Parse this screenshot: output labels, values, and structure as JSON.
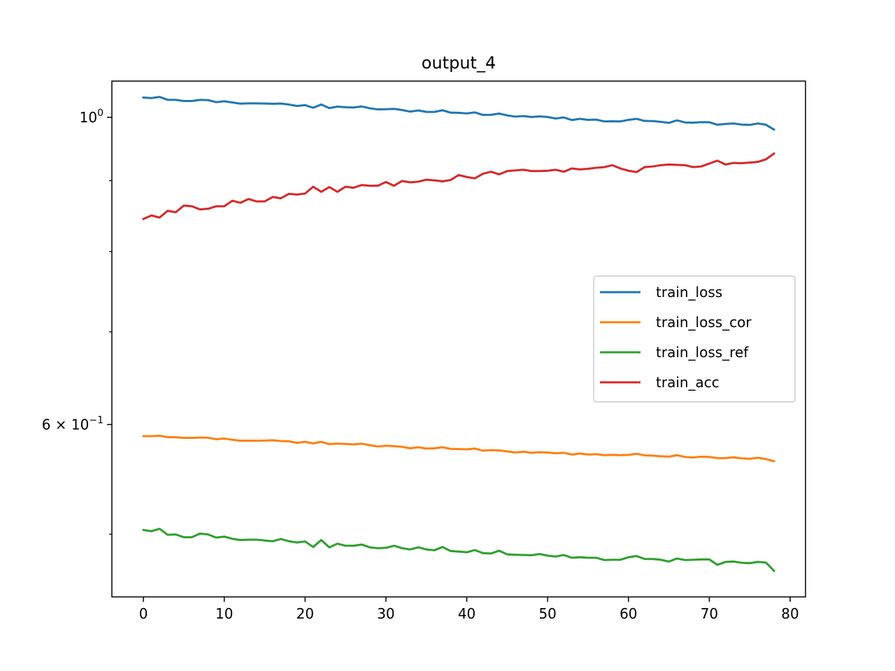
{
  "chart_data": {
    "type": "line",
    "title": "output_4",
    "xlabel": "",
    "ylabel": "",
    "xlim": [
      -3.9,
      81.9
    ],
    "ylim": [
      0.4505,
      1.0621
    ],
    "yscale": "log",
    "grid": false,
    "legend_position": "center-right",
    "xticks": [
      0,
      10,
      20,
      30,
      40,
      50,
      60,
      70,
      80
    ],
    "xtick_labels": [
      "0",
      "10",
      "20",
      "30",
      "40",
      "50",
      "60",
      "70",
      "80"
    ],
    "yticks_major": [
      1.0,
      0.6
    ],
    "yticks_major_labels": [
      {
        "base": "10",
        "exp": "0",
        "mult": ""
      },
      {
        "base": "10",
        "exp": "−1",
        "mult": "6 × "
      }
    ],
    "yticks_minor": [
      0.9,
      0.8,
      0.7,
      0.5
    ],
    "series": [
      {
        "name": "train_loss",
        "color": "#1f77b4",
        "start": 0,
        "values": [
          1.0335,
          1.0325,
          1.0345,
          1.0295,
          1.0295,
          1.0275,
          1.0275,
          1.0295,
          1.029,
          1.0255,
          1.027,
          1.025,
          1.023,
          1.0235,
          1.0235,
          1.0232,
          1.0228,
          1.0232,
          1.0215,
          1.019,
          1.0205,
          1.016,
          1.0215,
          1.0155,
          1.018,
          1.0168,
          1.0165,
          1.0182,
          1.0152,
          1.0132,
          1.0135,
          1.0142,
          1.0122,
          1.0095,
          1.0115,
          1.009,
          1.009,
          1.0118,
          1.0078,
          1.0075,
          1.0065,
          1.0082,
          1.004,
          1.0042,
          1.0062,
          1.0032,
          1.0012,
          1.0022,
          1.0005,
          1.0015,
          1.0005,
          0.998,
          0.9998,
          0.9955,
          0.9975,
          0.9958,
          0.9962,
          0.9932,
          0.9935,
          0.9932,
          0.9958,
          0.9975,
          0.994,
          0.9938,
          0.9925,
          0.9908,
          0.995,
          0.9915,
          0.9912,
          0.992,
          0.9918,
          0.9878,
          0.989,
          0.9898,
          0.988,
          0.9875,
          0.9898,
          0.9878,
          0.9798
        ]
      },
      {
        "name": "train_loss_cor",
        "color": "#ff7f0e",
        "start": 0,
        "values": [
          0.5885,
          0.5885,
          0.589,
          0.5875,
          0.5875,
          0.5868,
          0.5868,
          0.5872,
          0.587,
          0.5855,
          0.5862,
          0.585,
          0.584,
          0.5842,
          0.584,
          0.5842,
          0.5845,
          0.5838,
          0.5835,
          0.582,
          0.583,
          0.5815,
          0.583,
          0.5808,
          0.5812,
          0.581,
          0.5805,
          0.5812,
          0.5798,
          0.5785,
          0.5792,
          0.5788,
          0.5782,
          0.5768,
          0.5778,
          0.5765,
          0.5768,
          0.5778,
          0.5762,
          0.576,
          0.5758,
          0.5765,
          0.5745,
          0.575,
          0.5748,
          0.5738,
          0.5728,
          0.5735,
          0.5725,
          0.573,
          0.5728,
          0.572,
          0.5725,
          0.5708,
          0.5718,
          0.5708,
          0.5712,
          0.5702,
          0.5705,
          0.5702,
          0.5705,
          0.5715,
          0.57,
          0.5698,
          0.5692,
          0.5688,
          0.5702,
          0.5685,
          0.568,
          0.5688,
          0.5685,
          0.5675,
          0.5675,
          0.5682,
          0.5672,
          0.5668,
          0.5678,
          0.5665,
          0.5645
        ]
      },
      {
        "name": "train_loss_ref",
        "color": "#2ca02c",
        "start": 0,
        "values": [
          0.5035,
          0.5025,
          0.5045,
          0.4995,
          0.4998,
          0.4975,
          0.4975,
          0.5005,
          0.4998,
          0.4972,
          0.498,
          0.4962,
          0.4952,
          0.4955,
          0.4955,
          0.4948,
          0.4942,
          0.496,
          0.4942,
          0.4932,
          0.494,
          0.4895,
          0.4952,
          0.4892,
          0.4922,
          0.4905,
          0.4905,
          0.4915,
          0.4892,
          0.4885,
          0.4888,
          0.4905,
          0.4885,
          0.4875,
          0.4892,
          0.4875,
          0.4868,
          0.4895,
          0.4862,
          0.4858,
          0.4852,
          0.487,
          0.4845,
          0.4842,
          0.4865,
          0.4835,
          0.4832,
          0.483,
          0.4828,
          0.4838,
          0.4825,
          0.4818,
          0.483,
          0.4808,
          0.4812,
          0.4808,
          0.4808,
          0.479,
          0.4792,
          0.4792,
          0.4812,
          0.4822,
          0.4798,
          0.4798,
          0.4792,
          0.4778,
          0.4802,
          0.479,
          0.4792,
          0.4795,
          0.4795,
          0.4752,
          0.4775,
          0.4778,
          0.4768,
          0.4765,
          0.4775,
          0.477,
          0.4705
        ]
      },
      {
        "name": "train_acc",
        "color": "#d62728",
        "start": 0,
        "values": [
          0.8445,
          0.8495,
          0.8465,
          0.856,
          0.854,
          0.8635,
          0.8625,
          0.858,
          0.859,
          0.8625,
          0.8625,
          0.8705,
          0.8675,
          0.873,
          0.8695,
          0.8695,
          0.876,
          0.874,
          0.8805,
          0.8795,
          0.881,
          0.891,
          0.8835,
          0.8905,
          0.8835,
          0.891,
          0.8895,
          0.8935,
          0.8925,
          0.8925,
          0.898,
          0.8925,
          0.8995,
          0.8975,
          0.8985,
          0.9015,
          0.9005,
          0.899,
          0.901,
          0.9085,
          0.9055,
          0.9035,
          0.9105,
          0.9135,
          0.9095,
          0.9145,
          0.9155,
          0.9165,
          0.9145,
          0.9145,
          0.915,
          0.9165,
          0.9135,
          0.9185,
          0.917,
          0.918,
          0.9195,
          0.9205,
          0.9235,
          0.9185,
          0.915,
          0.913,
          0.9205,
          0.9215,
          0.9235,
          0.9245,
          0.924,
          0.9235,
          0.9205,
          0.9215,
          0.926,
          0.9305,
          0.9245,
          0.927,
          0.9265,
          0.9275,
          0.9285,
          0.9325,
          0.9415
        ]
      }
    ]
  }
}
